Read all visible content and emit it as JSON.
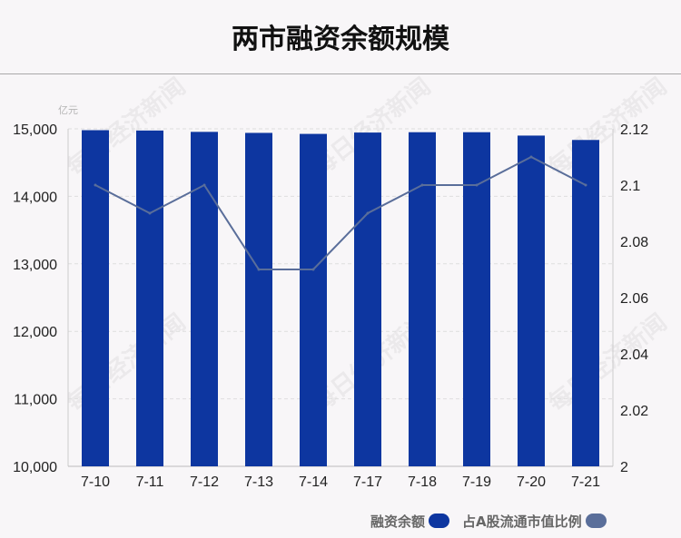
{
  "title": "两市融资余额规模",
  "watermark": "每日经济新闻",
  "legend": [
    {
      "label": "融资余额",
      "color": "#0d36a0"
    },
    {
      "label": "占A股流通市值比例",
      "color": "#5a6e9a"
    }
  ],
  "chart_data": {
    "type": "bar",
    "categories": [
      "7-10",
      "7-11",
      "7-12",
      "7-13",
      "7-14",
      "7-17",
      "7-18",
      "7-19",
      "7-20",
      "7-21"
    ],
    "series": [
      {
        "name": "融资余额",
        "type": "bar",
        "axis": "left",
        "values": [
          14980,
          14975,
          14955,
          14940,
          14925,
          14945,
          14950,
          14950,
          14900,
          14835
        ]
      },
      {
        "name": "占A股流通市值比例",
        "type": "line",
        "axis": "right",
        "values": [
          2.1,
          2.09,
          2.1,
          2.07,
          2.07,
          2.09,
          2.1,
          2.1,
          2.11,
          2.1
        ]
      }
    ],
    "yunit": "亿元",
    "ylim": [
      10000,
      15000
    ],
    "yticks": [
      "10,000",
      "11,000",
      "12,000",
      "13,000",
      "14,000",
      "15,000"
    ],
    "y2lim": [
      2,
      2.12
    ],
    "y2ticks": [
      "2",
      "2.02",
      "2.04",
      "2.06",
      "2.08",
      "2.1",
      "2.12"
    ],
    "bar_color": "#0d36a0",
    "line_color": "#5a6e9a",
    "legend_position": "bottom-right"
  }
}
